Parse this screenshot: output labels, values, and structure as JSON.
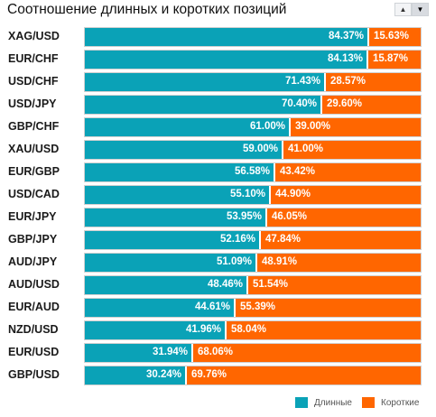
{
  "header": {
    "title": "Соотношение длинных и коротких позиций",
    "sort_up_icon": "triangle-up-icon",
    "sort_down_icon": "triangle-down-icon"
  },
  "colors": {
    "long": "#0aa2b7",
    "short": "#ff6600",
    "track": "#d0d0d0"
  },
  "chart_data": {
    "type": "bar",
    "orientation": "horizontal",
    "stacked": true,
    "percent": true,
    "title": "Соотношение длинных и коротких позиций",
    "categories": [
      "XAG/USD",
      "EUR/CHF",
      "USD/CHF",
      "USD/JPY",
      "GBP/CHF",
      "XAU/USD",
      "EUR/GBP",
      "USD/CAD",
      "EUR/JPY",
      "GBP/JPY",
      "AUD/JPY",
      "AUD/USD",
      "EUR/AUD",
      "NZD/USD",
      "EUR/USD",
      "GBP/USD"
    ],
    "series": [
      {
        "name": "Длинные",
        "values": [
          84.37,
          84.13,
          71.43,
          70.4,
          61.0,
          59.0,
          56.58,
          55.1,
          53.95,
          52.16,
          51.09,
          48.46,
          44.61,
          41.96,
          31.94,
          30.24
        ],
        "labels": [
          "84.37%",
          "84.13%",
          "71.43%",
          "70.40%",
          "61.00%",
          "59.00%",
          "56.58%",
          "55.10%",
          "53.95%",
          "52.16%",
          "51.09%",
          "48.46%",
          "44.61%",
          "41.96%",
          "31.94%",
          "30.24%"
        ]
      },
      {
        "name": "Короткие",
        "values": [
          15.63,
          15.87,
          28.57,
          29.6,
          39.0,
          41.0,
          43.42,
          44.9,
          46.05,
          47.84,
          48.91,
          51.54,
          55.39,
          58.04,
          68.06,
          69.76
        ],
        "labels": [
          "15.63%",
          "15.87%",
          "28.57%",
          "29.60%",
          "39.00%",
          "41.00%",
          "43.42%",
          "44.90%",
          "46.05%",
          "47.84%",
          "48.91%",
          "51.54%",
          "55.39%",
          "58.04%",
          "68.06%",
          "69.76%"
        ]
      }
    ],
    "xlim": [
      0,
      100
    ],
    "legend": "bottom-right",
    "grid": false
  },
  "legend": {
    "long_label": "Длинные",
    "short_label": "Короткие"
  }
}
